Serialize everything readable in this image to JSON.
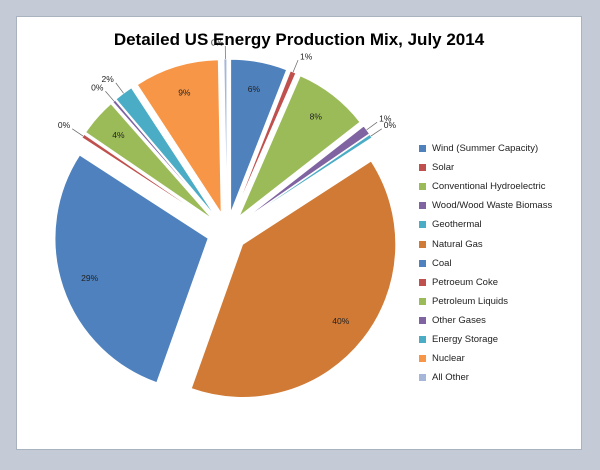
{
  "chart_data": {
    "type": "pie",
    "title": "Detailed US Energy Production Mix, July 2014",
    "legend_position": "right",
    "exploded": true,
    "slices": [
      {
        "name": "Wind (Summer Capacity)",
        "value": 6,
        "label": "6%",
        "color": "#4f81bd"
      },
      {
        "name": "Solar",
        "value": 0.6,
        "label": "1%",
        "color": "#c0504d"
      },
      {
        "name": "Conventional Hydroelectric",
        "value": 8,
        "label": "8%",
        "color": "#9bbb59"
      },
      {
        "name": "Wood/Wood Waste Biomass",
        "value": 1,
        "label": "1%",
        "color": "#8064a2"
      },
      {
        "name": "Geothermal",
        "value": 0.4,
        "label": "0%",
        "color": "#4bacc6"
      },
      {
        "name": "Natural Gas",
        "value": 40,
        "label": "40%",
        "color": "#d07a35"
      },
      {
        "name": "Coal",
        "value": 29,
        "label": "29%",
        "color": "#4e81bd"
      },
      {
        "name": "Petroeum Coke",
        "value": 0.4,
        "label": "0%",
        "color": "#c0504d"
      },
      {
        "name": "Petroleum Liquids",
        "value": 4,
        "label": "4%",
        "color": "#9bbb59"
      },
      {
        "name": "Other Gases",
        "value": 0.3,
        "label": "0%",
        "color": "#8064a2"
      },
      {
        "name": "Energy Storage",
        "value": 2,
        "label": "2%",
        "color": "#4bacc6"
      },
      {
        "name": "Nuclear",
        "value": 9,
        "label": "9%",
        "color": "#f79646"
      },
      {
        "name": "All Other",
        "value": 0.3,
        "label": "0%",
        "color": "#a5b6d8"
      }
    ]
  }
}
